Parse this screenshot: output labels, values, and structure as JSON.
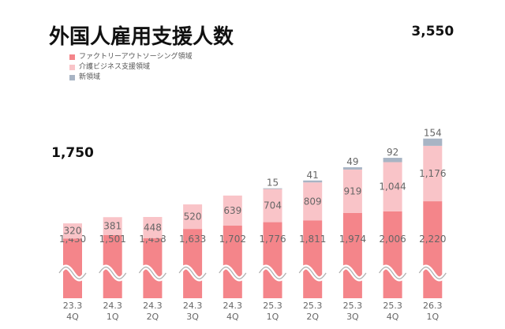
{
  "title": "外国人雇用支援人数",
  "legend": [
    {
      "label": "ファクトリーアウトソーシング領域",
      "color": "#f4858a"
    },
    {
      "label": "介護ビジネス支援領域",
      "color": "#f9c4c8"
    },
    {
      "label": "新領域",
      "color": "#a8b4c4"
    }
  ],
  "chart_data": {
    "type": "bar",
    "stacked": true,
    "broken_y_axis": true,
    "categories": [
      [
        "23.3",
        "4Q"
      ],
      [
        "24.3",
        "1Q"
      ],
      [
        "24.3",
        "2Q"
      ],
      [
        "24.3",
        "3Q"
      ],
      [
        "24.3",
        "4Q"
      ],
      [
        "25.3",
        "1Q"
      ],
      [
        "25.3",
        "2Q"
      ],
      [
        "25.3",
        "3Q"
      ],
      [
        "25.3",
        "4Q"
      ],
      [
        "26.3",
        "1Q"
      ]
    ],
    "series": [
      {
        "name": "ファクトリーアウトソーシング領域",
        "color": "#f4858a",
        "values": [
          1430,
          1501,
          1438,
          1633,
          1702,
          1776,
          1811,
          1974,
          2006,
          2220
        ],
        "labels": [
          "1,430",
          "1,501",
          "1,438",
          "1,633",
          "1,702",
          "1,776",
          "1,811",
          "1,974",
          "2,006",
          "2,220"
        ]
      },
      {
        "name": "介護ビジネス支援領域",
        "color": "#f9c4c8",
        "values": [
          320,
          381,
          448,
          520,
          639,
          704,
          809,
          919,
          1044,
          1176
        ],
        "labels": [
          "320",
          "381",
          "448",
          "520",
          "639",
          "704",
          "809",
          "919",
          "1,044",
          "1,176"
        ]
      },
      {
        "name": "新領域",
        "color": "#a8b4c4",
        "values": [
          0,
          0,
          0,
          0,
          0,
          15,
          41,
          49,
          92,
          154
        ],
        "labels": [
          "",
          "",
          "",
          "",
          "",
          "15",
          "41",
          "49",
          "92",
          "154"
        ]
      }
    ],
    "totals": [
      {
        "index": 0,
        "label": "1,750"
      },
      {
        "index": 9,
        "label": "3,550"
      }
    ]
  }
}
